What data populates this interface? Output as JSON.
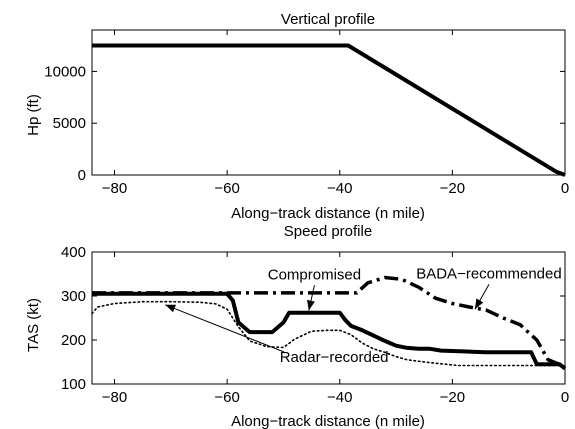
{
  "chart_data": [
    {
      "type": "line",
      "title": "Vertical profile",
      "xlabel": "Along−track distance (n mile)",
      "ylabel": "Hp (ft)",
      "xlim": [
        -84,
        0
      ],
      "ylim": [
        0,
        14000
      ],
      "xticks": [
        -80,
        -60,
        -40,
        -20,
        0
      ],
      "xtick_labels": [
        "−80",
        "−60",
        "−40",
        "−20",
        "0"
      ],
      "yticks": [
        0,
        5000,
        10000
      ],
      "ytick_labels": [
        "0",
        "5000",
        "10000"
      ],
      "grid": false,
      "series": [
        {
          "style": "solid-thick",
          "x": [
            -84,
            -38.5,
            -1.5,
            0
          ],
          "y": [
            12500,
            12500,
            300,
            0
          ]
        }
      ]
    },
    {
      "type": "line",
      "title": "Speed profile",
      "xlabel": "Along−track distance (n mile)",
      "ylabel": "TAS (kt)",
      "xlim": [
        -84,
        0
      ],
      "ylim": [
        100,
        400
      ],
      "xticks": [
        -80,
        -60,
        -40,
        -20,
        0
      ],
      "xtick_labels": [
        "−80",
        "−60",
        "−40",
        "−20",
        "0"
      ],
      "yticks": [
        100,
        200,
        300,
        400
      ],
      "ytick_labels": [
        "100",
        "200",
        "300",
        "400"
      ],
      "grid": false,
      "series": [
        {
          "name": "BADA−recommended",
          "style": "dashdot",
          "x": [
            -84,
            -37,
            -35,
            -32,
            -29,
            -26,
            -23,
            -20,
            -17,
            -14,
            -11,
            -8,
            -5,
            -3,
            -1,
            0
          ],
          "y": [
            307,
            307,
            330,
            342,
            338,
            320,
            295,
            283,
            275,
            268,
            250,
            235,
            200,
            155,
            145,
            140
          ]
        },
        {
          "name": "Compromised",
          "style": "solid-thick",
          "x": [
            -84,
            -60,
            -59,
            -58,
            -56,
            -52,
            -50,
            -49,
            -40,
            -39,
            -38,
            -36,
            -34,
            -32,
            -30,
            -28,
            -26,
            -24,
            -22,
            -20,
            -18,
            -16,
            -14,
            -12,
            -10,
            -8,
            -6,
            -5,
            -3,
            -1,
            0
          ],
          "y": [
            305,
            305,
            290,
            240,
            218,
            218,
            240,
            262,
            262,
            245,
            232,
            222,
            210,
            198,
            187,
            182,
            180,
            180,
            176,
            175,
            174,
            173,
            172,
            172,
            172,
            172,
            172,
            145,
            145,
            145,
            135
          ]
        },
        {
          "name": "Radar−recorded",
          "style": "dotted",
          "x": [
            -84,
            -83,
            -80,
            -75,
            -70,
            -65,
            -62,
            -60,
            -58,
            -56,
            -53,
            -50,
            -48,
            -45,
            -42,
            -40,
            -38,
            -36,
            -34,
            -32,
            -30,
            -28,
            -25,
            -22,
            -19,
            -16,
            -13,
            -10,
            -7,
            -5,
            -3,
            -1,
            0
          ],
          "y": [
            260,
            275,
            283,
            287,
            287,
            286,
            282,
            270,
            230,
            198,
            185,
            183,
            202,
            220,
            222,
            222,
            212,
            193,
            180,
            172,
            162,
            155,
            150,
            146,
            142,
            142,
            142,
            142,
            142,
            142,
            142,
            142,
            140
          ]
        }
      ],
      "annotations": [
        {
          "text": "Compromised",
          "x": -44.5,
          "y": 338,
          "arrow_to": [
            -45.5,
            267
          ]
        },
        {
          "text": "BADA−recommended",
          "x": -13.5,
          "y": 340,
          "arrow_to": [
            -16,
            270
          ]
        },
        {
          "text": "Radar−recorded",
          "x": -41,
          "y": 150,
          "arrow_to": [
            -71,
            280
          ]
        }
      ]
    }
  ]
}
